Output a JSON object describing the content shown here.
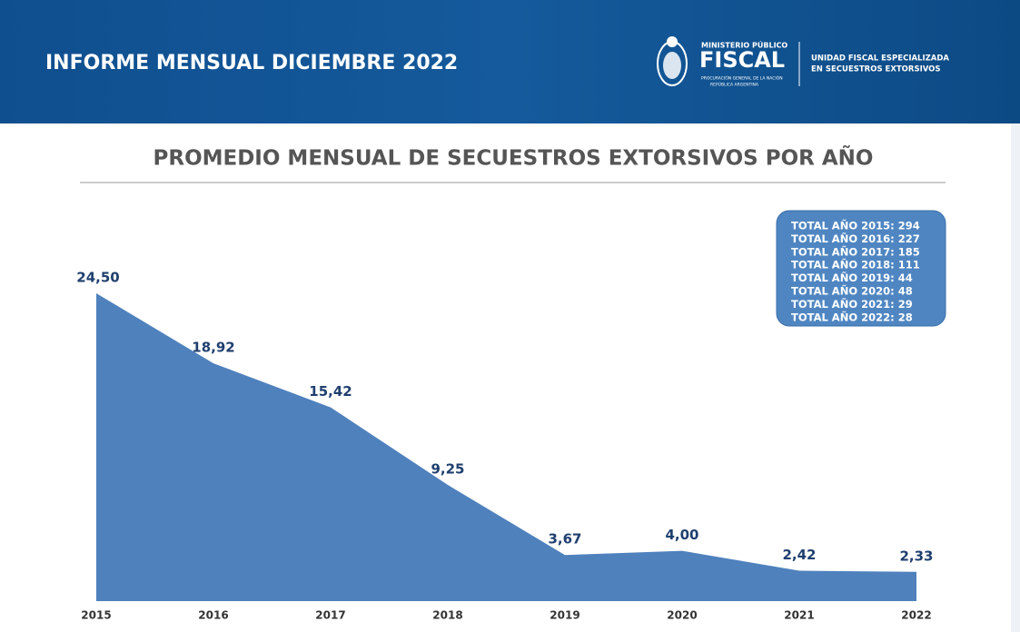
{
  "header": {
    "title": "INFORME MENSUAL DICIEMBRE 2022",
    "logo_top": "MINISTERIO PÚBLICO",
    "logo_main": "FISCAL",
    "logo_sub1": "PROCURACIÓN GENERAL DE LA NACIÓN",
    "logo_sub2": "REPÚBLICA ARGENTINA",
    "unit_line1": "UNIDAD FISCAL ESPECIALIZADA",
    "unit_line2": "EN SECUESTROS EXTORSIVOS"
  },
  "chart_data": {
    "type": "area",
    "title": "PROMEDIO MENSUAL DE SECUESTROS EXTORSIVOS POR AÑO",
    "categories": [
      "2015",
      "2016",
      "2017",
      "2018",
      "2019",
      "2020",
      "2021",
      "2022"
    ],
    "values": [
      24.5,
      18.92,
      15.42,
      9.25,
      3.67,
      4.0,
      2.42,
      2.33
    ],
    "value_labels": [
      "24,50",
      "18,92",
      "15,42",
      "9,25",
      "3,67",
      "4,00",
      "2,42",
      "2,33"
    ],
    "color": "#4f81bd",
    "ylim": [
      0,
      26
    ],
    "annotations": [
      "TOTAL AÑO 2015: 294",
      "TOTAL AÑO 2016: 227",
      "TOTAL AÑO 2017: 185",
      "TOTAL AÑO 2018: 111",
      "TOTAL AÑO 2019: 44",
      "TOTAL AÑO 2020: 48",
      "TOTAL AÑO 2021: 29",
      "TOTAL AÑO 2022: 28"
    ]
  }
}
